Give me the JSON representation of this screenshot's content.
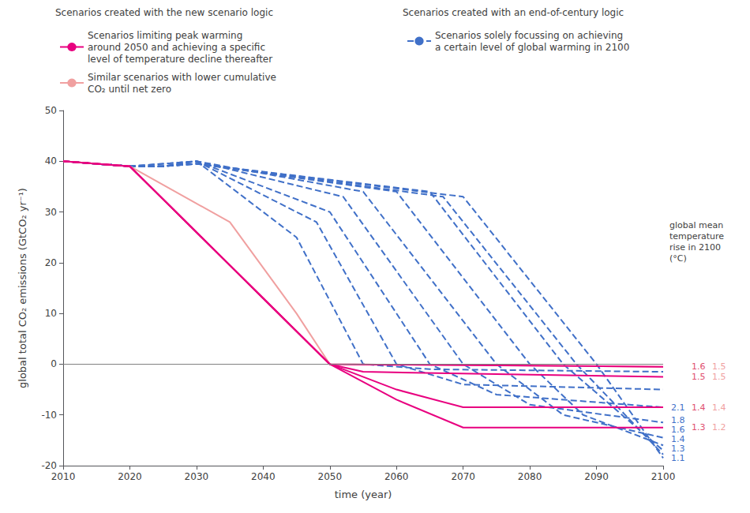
{
  "chart_data": {
    "type": "line",
    "xlabel": "time (year)",
    "ylabel": "global total CO₂ emissions (GtCO₂ yr⁻¹)",
    "xlim": [
      2010,
      2100
    ],
    "ylim": [
      -20,
      50
    ],
    "xticks": [
      2010,
      2020,
      2030,
      2040,
      2050,
      2060,
      2070,
      2080,
      2090,
      2100
    ],
    "yticks": [
      -20,
      -10,
      0,
      10,
      20,
      30,
      40,
      50
    ],
    "grid": false,
    "legend": "top",
    "legend_groups": [
      {
        "title": "Scenarios created with the new scenario logic",
        "entries": [
          "Scenarios limiting peak warming\naround 2050 and achieving a specific\nlevel of temperature decline thereafter",
          "Similar scenarios with lower cumulative\nCO₂ until net zero"
        ]
      },
      {
        "title": "Scenarios created with an end-of-century logic",
        "entries": [
          "Scenarios solely focussing on achieving\na certain level of global warming in 2100"
        ]
      }
    ],
    "series": [
      {
        "name": "Scenarios solely focussing on achieving\na certain level of global warming in 2100",
        "color": "#4070c8",
        "line_style": "dashed",
        "x": [
          2010,
          2020,
          2025,
          2030,
          2045,
          2055,
          2065,
          2100
        ],
        "values": [
          40,
          39,
          39.5,
          40,
          25,
          0,
          -1,
          -1.5
        ]
      },
      {
        "name": "Scenarios solely focussing on achieving\na certain level of global warming in 2100",
        "color": "#4070c8",
        "line_style": "dashed",
        "x": [
          2010,
          2020,
          2025,
          2030,
          2048,
          2060,
          2070,
          2100
        ],
        "values": [
          40,
          39,
          39.5,
          40,
          28,
          0,
          -4,
          -5.0
        ]
      },
      {
        "name": "Scenarios solely focussing on achieving\na certain level of global warming in 2100",
        "color": "#4070c8",
        "line_style": "dashed",
        "x": [
          2010,
          2020,
          2025,
          2030,
          2050,
          2065,
          2075,
          2100
        ],
        "values": [
          40,
          39,
          39,
          40,
          30,
          0,
          -6,
          -8.5
        ]
      },
      {
        "name": "Scenarios solely focussing on achieving\na certain level of global warming in 2100",
        "color": "#4070c8",
        "line_style": "dashed",
        "x": [
          2010,
          2020,
          2025,
          2030,
          2052,
          2070,
          2080,
          2100
        ],
        "values": [
          40,
          39,
          39,
          40,
          33,
          0,
          -8,
          -11.5
        ]
      },
      {
        "name": "Scenarios solely focussing on achieving\na certain level of global warming in 2100",
        "color": "#4070c8",
        "line_style": "dashed",
        "x": [
          2010,
          2020,
          2025,
          2030,
          2055,
          2075,
          2085,
          2100
        ],
        "values": [
          40,
          39,
          39,
          40,
          34,
          0,
          -10,
          -14.5
        ]
      },
      {
        "name": "Scenarios solely focussing on achieving\na certain level of global warming in 2100",
        "color": "#4070c8",
        "line_style": "dashed",
        "x": [
          2010,
          2020,
          2025,
          2030,
          2060,
          2080,
          2088,
          2100
        ],
        "values": [
          40,
          39,
          39,
          39.5,
          34,
          0,
          -10,
          -16.0
        ]
      },
      {
        "name": "Scenarios solely focussing on achieving\na certain level of global warming in 2100",
        "color": "#4070c8",
        "line_style": "dashed",
        "x": [
          2010,
          2020,
          2025,
          2030,
          2065,
          2085,
          2100
        ],
        "values": [
          40,
          39,
          39,
          39.5,
          34,
          0,
          -17.0
        ]
      },
      {
        "name": "Scenarios solely focussing on achieving\na certain level of global warming in 2100",
        "color": "#4070c8",
        "line_style": "dashed",
        "x": [
          2010,
          2020,
          2025,
          2030,
          2067,
          2087,
          2100
        ],
        "values": [
          40,
          39,
          39,
          39.5,
          33,
          0,
          -17.8
        ]
      },
      {
        "name": "Scenarios solely focussing on achieving\na certain level of global warming in 2100",
        "color": "#4070c8",
        "line_style": "dashed",
        "x": [
          2010,
          2020,
          2025,
          2030,
          2070,
          2090,
          2100
        ],
        "values": [
          40,
          39,
          39,
          39.5,
          33,
          0,
          -18.5
        ]
      },
      {
        "name": "Similar scenarios with lower cumulative\nCO₂ until net zero",
        "color": "#f0a0a0",
        "line_style": "solid",
        "x": [
          2010,
          2020,
          2035,
          2045,
          2050,
          2100
        ],
        "values": [
          40,
          39,
          28,
          10,
          0,
          -0.5
        ]
      },
      {
        "name": "Scenarios limiting peak warming\naround 2050 and achieving a specific\nlevel of temperature decline thereafter",
        "color": "#e8007f",
        "line_style": "solid",
        "x": [
          2010,
          2020,
          2050,
          2100
        ],
        "values": [
          40,
          39,
          0,
          -0.5
        ]
      },
      {
        "name": "Scenarios limiting peak warming\naround 2050 and achieving a specific\nlevel of temperature decline thereafter",
        "color": "#e8007f",
        "line_style": "solid",
        "x": [
          2010,
          2020,
          2050,
          2055,
          2100
        ],
        "values": [
          40,
          39,
          0,
          -1.5,
          -2.5
        ]
      },
      {
        "name": "Scenarios limiting peak warming\naround 2050 and achieving a specific\nlevel of temperature decline thereafter",
        "color": "#e8007f",
        "line_style": "solid",
        "x": [
          2010,
          2020,
          2050,
          2060,
          2070,
          2100
        ],
        "values": [
          40,
          39,
          0,
          -5,
          -8.5,
          -8.5
        ]
      },
      {
        "name": "Scenarios limiting peak warming\naround 2050 and achieving a specific\nlevel of temperature decline thereafter",
        "color": "#e8007f",
        "line_style": "solid",
        "x": [
          2010,
          2020,
          2050,
          2060,
          2070,
          2100
        ],
        "values": [
          40,
          39,
          0,
          -7,
          -12.5,
          -12.5
        ]
      }
    ],
    "reference_lines": [
      {
        "y": 0,
        "color": "#808080"
      }
    ],
    "annotations": [
      {
        "text": "global mean\ntemperature\nrise in 2100\n(°C)"
      },
      {
        "text": "2.1",
        "y": -8.5,
        "color": "#4070c8"
      },
      {
        "text": "1.6",
        "y": -0.5,
        "color": "#e05070"
      },
      {
        "text": "1.5",
        "y": -0.5,
        "color": "#f0a0a0"
      },
      {
        "text": "1.5",
        "y": -2.5,
        "color": "#e05070"
      },
      {
        "text": "1.5",
        "y": -2.5,
        "color": "#f0a0a0"
      },
      {
        "text": "1.4",
        "y": -8.5,
        "color": "#e05070"
      },
      {
        "text": "1.4",
        "y": -8.5,
        "color": "#f0a0a0"
      },
      {
        "text": "1.3",
        "y": -12.5,
        "color": "#e05070"
      },
      {
        "text": "1.2",
        "y": -12.5,
        "color": "#f0a0a0"
      },
      {
        "text": "1.8",
        "y": -14.5,
        "color": "#4070c8"
      },
      {
        "text": "1.6",
        "y": -16.0,
        "color": "#4070c8"
      },
      {
        "text": "1.4",
        "y": -17.0,
        "color": "#4070c8"
      },
      {
        "text": "1.3",
        "y": -17.8,
        "color": "#4070c8"
      },
      {
        "text": "1.1",
        "y": -18.5,
        "color": "#4070c8"
      }
    ]
  }
}
